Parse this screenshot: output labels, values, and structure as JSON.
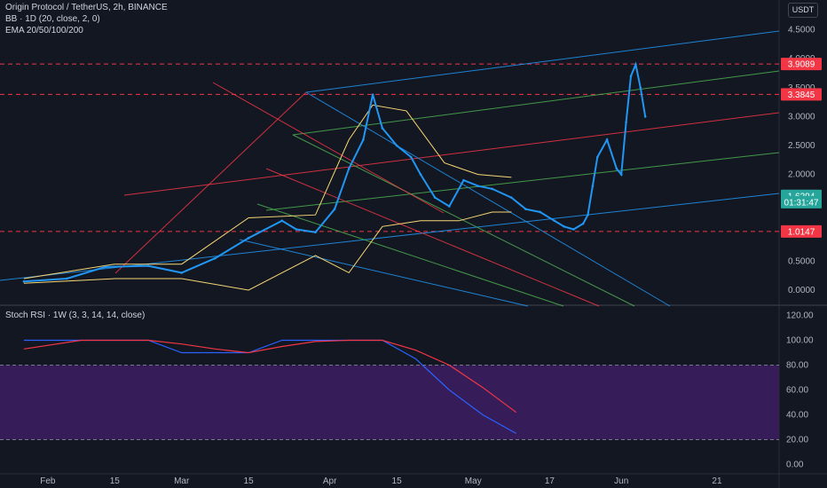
{
  "header": {
    "symbol_line": "Origin Protocol / TetherUS, 2h, BINANCE",
    "bb_line": "BB · 1D (20, close, 2, 0)",
    "ema_line": "EMA 20/50/100/200",
    "currency": "USDT"
  },
  "rsi": {
    "label": "Stoch RSI · 1W (3, 3, 14, 14, close)"
  },
  "colors": {
    "background": "#131722",
    "price": "#2962ff",
    "price_highlight": "#2196f3",
    "red_level": "#f23645",
    "teal_label": "#26a69a",
    "bb_band": "#f7d774",
    "rsi_k": "#2962ff",
    "rsi_d": "#f23645",
    "rsi_band": "#3d1f63"
  },
  "chart_data": [
    {
      "type": "line",
      "panel": "price",
      "y_ticks": [
        "4.5000",
        "4.0000",
        "3.5000",
        "3.0000",
        "2.5000",
        "2.0000",
        "1.5000",
        "1.0000",
        "0.5000",
        "0.0000"
      ],
      "ylim": [
        -0.15,
        4.85
      ],
      "x_ticks": [
        "Feb",
        "15",
        "Mar",
        "15",
        "Apr",
        "15",
        "May",
        "17",
        "Jun",
        "21"
      ],
      "price_labels": [
        {
          "text": "3.9089",
          "value": 3.9089,
          "color": "red"
        },
        {
          "text": "3.3845",
          "value": 3.3845,
          "color": "red"
        },
        {
          "text": "1.6294",
          "value": 1.6294,
          "color": "teal"
        },
        {
          "text": "01:31:47",
          "value": 1.52,
          "color": "teal"
        },
        {
          "text": "1.0147",
          "value": 1.0147,
          "color": "red"
        }
      ],
      "horizontal_levels": [
        3.9089,
        3.3845,
        1.0147
      ],
      "series": [
        {
          "key": "price",
          "x": [
            "2021-01-27",
            "2021-02-05",
            "2021-02-13",
            "2021-02-22",
            "2021-03-01",
            "2021-03-08",
            "2021-03-15",
            "2021-03-22",
            "2021-03-25",
            "2021-03-29",
            "2021-04-02",
            "2021-04-05",
            "2021-04-08",
            "2021-04-10",
            "2021-04-12",
            "2021-04-15",
            "2021-04-18",
            "2021-04-20",
            "2021-04-23",
            "2021-04-26",
            "2021-04-29",
            "2021-05-02",
            "2021-05-05",
            "2021-05-09",
            "2021-05-12",
            "2021-05-15",
            "2021-05-18",
            "2021-05-20",
            "2021-05-22",
            "2021-05-24",
            "2021-05-25",
            "2021-05-26",
            "2021-05-27",
            "2021-05-29",
            "2021-05-31",
            "2021-06-01",
            "2021-06-02",
            "2021-06-03",
            "2021-06-04",
            "2021-06-05",
            "2021-06-06"
          ],
          "y": [
            0.15,
            0.2,
            0.4,
            0.42,
            0.3,
            0.55,
            0.9,
            1.2,
            1.05,
            1.0,
            1.4,
            2.1,
            2.6,
            3.38,
            2.8,
            2.5,
            2.3,
            2.0,
            1.6,
            1.45,
            1.9,
            1.8,
            1.75,
            1.6,
            1.4,
            1.35,
            1.2,
            1.1,
            1.05,
            1.15,
            1.3,
            1.8,
            2.3,
            2.6,
            2.1,
            2.0,
            2.9,
            3.7,
            3.9,
            3.5,
            3.0
          ]
        },
        {
          "key": "bb_upper",
          "x": [
            "2021-01-27",
            "2021-02-15",
            "2021-03-01",
            "2021-03-15",
            "2021-03-29",
            "2021-04-05",
            "2021-04-10",
            "2021-04-17",
            "2021-04-25",
            "2021-05-02",
            "2021-05-09"
          ],
          "y": [
            0.2,
            0.45,
            0.45,
            1.25,
            1.3,
            2.6,
            3.2,
            3.1,
            2.2,
            2.0,
            1.95
          ]
        },
        {
          "key": "bb_lower",
          "x": [
            "2021-01-27",
            "2021-02-15",
            "2021-03-01",
            "2021-03-15",
            "2021-03-29",
            "2021-04-05",
            "2021-04-12",
            "2021-04-20",
            "2021-04-28",
            "2021-05-05",
            "2021-05-09"
          ],
          "y": [
            0.12,
            0.2,
            0.2,
            0.0,
            0.6,
            0.3,
            1.1,
            1.2,
            1.2,
            1.35,
            1.35
          ]
        }
      ]
    },
    {
      "type": "line",
      "panel": "stoch_rsi",
      "y_ticks": [
        "120.00",
        "100.00",
        "80.00",
        "60.00",
        "40.00",
        "20.00",
        "0.00"
      ],
      "ylim": [
        -5,
        125
      ],
      "band": [
        20,
        80
      ],
      "series": [
        {
          "key": "k",
          "x": [
            "2021-01-27",
            "2021-02-08",
            "2021-02-22",
            "2021-03-01",
            "2021-03-08",
            "2021-03-15",
            "2021-03-22",
            "2021-03-29",
            "2021-04-05",
            "2021-04-12",
            "2021-04-19",
            "2021-04-26",
            "2021-05-03",
            "2021-05-10"
          ],
          "y": [
            100,
            100,
            100,
            90,
            90,
            90,
            100,
            100,
            100,
            100,
            85,
            60,
            40,
            25
          ]
        },
        {
          "key": "d",
          "x": [
            "2021-01-27",
            "2021-02-08",
            "2021-02-22",
            "2021-03-01",
            "2021-03-08",
            "2021-03-15",
            "2021-03-22",
            "2021-03-29",
            "2021-04-05",
            "2021-04-12",
            "2021-04-19",
            "2021-04-26",
            "2021-05-03",
            "2021-05-10"
          ],
          "y": [
            93,
            100,
            100,
            97,
            93,
            90,
            95,
            99,
            100,
            100,
            92,
            80,
            62,
            42
          ]
        }
      ]
    }
  ]
}
